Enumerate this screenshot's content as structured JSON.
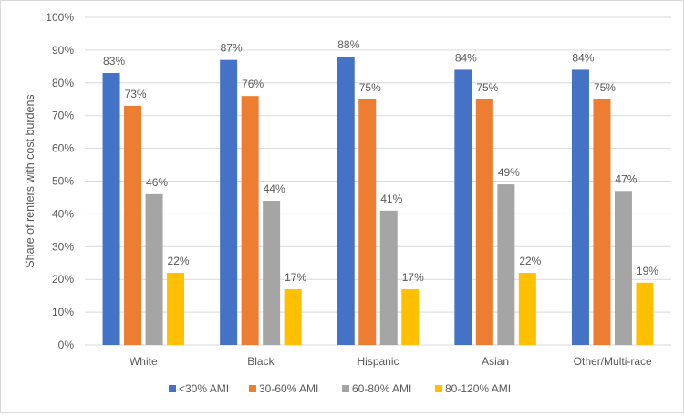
{
  "chart_data": {
    "type": "bar",
    "title": "",
    "xlabel": "",
    "ylabel": "Share of renters with cost burdens",
    "ylim": [
      0,
      100
    ],
    "yticks": [
      "0%",
      "10%",
      "20%",
      "30%",
      "40%",
      "50%",
      "60%",
      "70%",
      "80%",
      "90%",
      "100%"
    ],
    "grid": true,
    "legend_position": "bottom",
    "categories": [
      "White",
      "Black",
      "Hispanic",
      "Asian",
      "Other/Multi-race"
    ],
    "series": [
      {
        "name": "<30% AMI",
        "color": "#4472C4",
        "values": [
          83,
          87,
          88,
          84,
          84
        ],
        "labels": [
          "83%",
          "87%",
          "88%",
          "84%",
          "84%"
        ]
      },
      {
        "name": "30-60% AMI",
        "color": "#ED7D31",
        "values": [
          73,
          76,
          75,
          75,
          75
        ],
        "labels": [
          "73%",
          "76%",
          "75%",
          "75%",
          "75%"
        ]
      },
      {
        "name": "60-80% AMI",
        "color": "#A5A5A5",
        "values": [
          46,
          44,
          41,
          49,
          47
        ],
        "labels": [
          "46%",
          "44%",
          "41%",
          "49%",
          "47%"
        ]
      },
      {
        "name": "80-120% AMI",
        "color": "#FFC000",
        "values": [
          22,
          17,
          17,
          22,
          19
        ],
        "labels": [
          "22%",
          "17%",
          "17%",
          "22%",
          "19%"
        ]
      }
    ]
  }
}
